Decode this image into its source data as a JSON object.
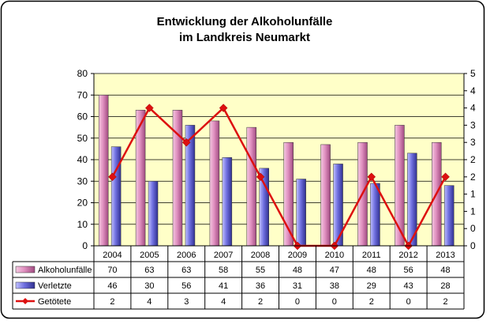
{
  "chart_data": {
    "type": "bar",
    "title_line1": "Entwicklung der Alkoholunfälle",
    "title_line2": "im Landkreis Neumarkt",
    "categories": [
      "2004",
      "2005",
      "2006",
      "2007",
      "2008",
      "2009",
      "2010",
      "2011",
      "2012",
      "2013"
    ],
    "ylim": [
      0,
      80
    ],
    "yticks": [
      "0",
      "10",
      "20",
      "30",
      "40",
      "50",
      "60",
      "70",
      "80"
    ],
    "y2lim": [
      0,
      5
    ],
    "y2ticks": [
      "0",
      "0",
      "1",
      "1",
      "2",
      "2",
      "3",
      "3",
      "4",
      "4",
      "5"
    ],
    "series": [
      {
        "name": "Alkoholunfälle",
        "kind": "bar",
        "axis": "left",
        "color": "#e8a0c8",
        "values": [
          70,
          63,
          63,
          58,
          55,
          48,
          47,
          48,
          56,
          48
        ]
      },
      {
        "name": "Verletzte",
        "kind": "bar",
        "axis": "left",
        "color": "#8c8cf0",
        "values": [
          46,
          30,
          56,
          41,
          36,
          31,
          38,
          29,
          43,
          28
        ]
      },
      {
        "name": "Getötete",
        "kind": "line",
        "axis": "right",
        "color": "#dd1010",
        "values": [
          2,
          4,
          3,
          4,
          2,
          0,
          0,
          2,
          0,
          2
        ]
      }
    ],
    "plot_background": "#ffffc8",
    "legend": "data-table"
  }
}
